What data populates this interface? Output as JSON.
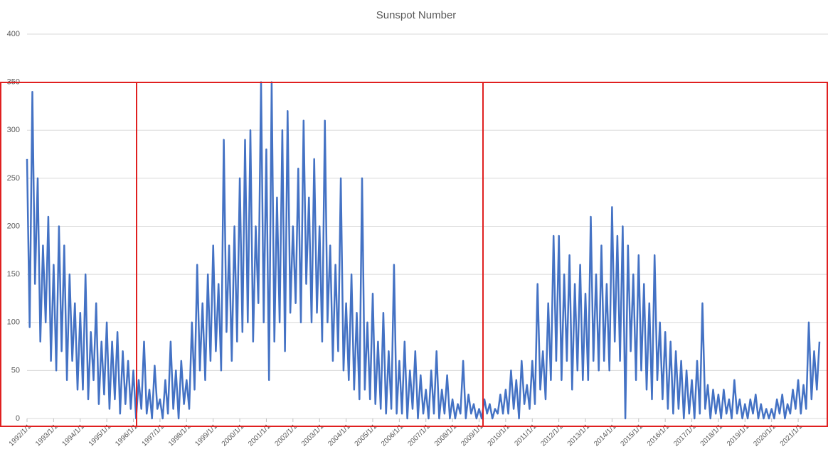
{
  "chart_data": {
    "type": "line",
    "title": "Sunspot Number",
    "color": "#4472c4",
    "grid": true,
    "xlim": [
      1992,
      2021.8
    ],
    "ylim": [
      0,
      400
    ],
    "yticks": [
      0,
      50,
      100,
      150,
      200,
      250,
      300,
      350,
      400
    ],
    "xticks": [
      {
        "value": 1992,
        "label": "1992/1/1"
      },
      {
        "value": 1993,
        "label": "1993/1/1"
      },
      {
        "value": 1994,
        "label": "1994/1/1"
      },
      {
        "value": 1995,
        "label": "1995/1/1"
      },
      {
        "value": 1996,
        "label": "1996/1/1"
      },
      {
        "value": 1997,
        "label": "1997/1/1"
      },
      {
        "value": 1998,
        "label": "1998/1/1"
      },
      {
        "value": 1999,
        "label": "1999/1/1"
      },
      {
        "value": 2000,
        "label": "2000/1/1"
      },
      {
        "value": 2001,
        "label": "2001/1/1"
      },
      {
        "value": 2002,
        "label": "2002/1/1"
      },
      {
        "value": 2003,
        "label": "2003/1/1"
      },
      {
        "value": 2004,
        "label": "2004/1/1"
      },
      {
        "value": 2005,
        "label": "2005/1/1"
      },
      {
        "value": 2006,
        "label": "2006/1/1"
      },
      {
        "value": 2007,
        "label": "2007/1/1"
      },
      {
        "value": 2008,
        "label": "2008/1/1"
      },
      {
        "value": 2009,
        "label": "2009/1/1"
      },
      {
        "value": 2010,
        "label": "2010/1/1"
      },
      {
        "value": 2011,
        "label": "2011/1/1"
      },
      {
        "value": 2012,
        "label": "2012/1/1"
      },
      {
        "value": 2013,
        "label": "2013/1/1"
      },
      {
        "value": 2014,
        "label": "2014/1/1"
      },
      {
        "value": 2015,
        "label": "2015/1/1"
      },
      {
        "value": 2016,
        "label": "2016/1/1"
      },
      {
        "value": 2017,
        "label": "2017/1/1"
      },
      {
        "value": 2018,
        "label": "2018/1/1"
      },
      {
        "value": 2019,
        "label": "2019/1/1"
      },
      {
        "value": 2020,
        "label": "2020/1/1"
      },
      {
        "value": 2021,
        "label": "2021/1/1"
      }
    ],
    "x": [
      1992,
      1992.1,
      1992.2,
      1992.3,
      1992.4,
      1992.5,
      1992.6,
      1992.7,
      1992.8,
      1992.9,
      1993,
      1993.1,
      1993.2,
      1993.3,
      1993.4,
      1993.5,
      1993.6,
      1993.7,
      1993.8,
      1993.9,
      1994,
      1994.1,
      1994.2,
      1994.3,
      1994.4,
      1994.5,
      1994.6,
      1994.7,
      1994.8,
      1994.9,
      1995,
      1995.1,
      1995.2,
      1995.3,
      1995.4,
      1995.5,
      1995.6,
      1995.7,
      1995.8,
      1995.9,
      1996,
      1996.1,
      1996.2,
      1996.3,
      1996.4,
      1996.5,
      1996.6,
      1996.7,
      1996.8,
      1996.9,
      1997,
      1997.1,
      1997.2,
      1997.3,
      1997.4,
      1997.5,
      1997.6,
      1997.7,
      1997.8,
      1997.9,
      1998,
      1998.1,
      1998.2,
      1998.3,
      1998.4,
      1998.5,
      1998.6,
      1998.7,
      1998.8,
      1998.9,
      1999,
      1999.1,
      1999.2,
      1999.3,
      1999.4,
      1999.5,
      1999.6,
      1999.7,
      1999.8,
      1999.9,
      2000,
      2000.1,
      2000.2,
      2000.3,
      2000.4,
      2000.5,
      2000.6,
      2000.7,
      2000.8,
      2000.9,
      2001,
      2001.1,
      2001.2,
      2001.3,
      2001.4,
      2001.5,
      2001.6,
      2001.7,
      2001.8,
      2001.9,
      2002,
      2002.1,
      2002.2,
      2002.3,
      2002.4,
      2002.5,
      2002.6,
      2002.7,
      2002.8,
      2002.9,
      2003,
      2003.1,
      2003.2,
      2003.3,
      2003.4,
      2003.5,
      2003.6,
      2003.7,
      2003.8,
      2003.9,
      2004,
      2004.1,
      2004.2,
      2004.3,
      2004.4,
      2004.5,
      2004.6,
      2004.7,
      2004.8,
      2004.9,
      2005,
      2005.1,
      2005.2,
      2005.3,
      2005.4,
      2005.5,
      2005.6,
      2005.7,
      2005.8,
      2005.9,
      2006,
      2006.1,
      2006.2,
      2006.3,
      2006.4,
      2006.5,
      2006.6,
      2006.7,
      2006.8,
      2006.9,
      2007,
      2007.1,
      2007.2,
      2007.3,
      2007.4,
      2007.5,
      2007.6,
      2007.7,
      2007.8,
      2007.9,
      2008,
      2008.1,
      2008.2,
      2008.3,
      2008.4,
      2008.5,
      2008.6,
      2008.7,
      2008.8,
      2008.9,
      2009,
      2009.1,
      2009.2,
      2009.3,
      2009.4,
      2009.5,
      2009.6,
      2009.7,
      2009.8,
      2009.9,
      2010,
      2010.1,
      2010.2,
      2010.3,
      2010.4,
      2010.5,
      2010.6,
      2010.7,
      2010.8,
      2010.9,
      2011,
      2011.1,
      2011.2,
      2011.3,
      2011.4,
      2011.5,
      2011.6,
      2011.7,
      2011.8,
      2011.9,
      2012,
      2012.1,
      2012.2,
      2012.3,
      2012.4,
      2012.5,
      2012.6,
      2012.7,
      2012.8,
      2012.9,
      2013,
      2013.1,
      2013.2,
      2013.3,
      2013.4,
      2013.5,
      2013.6,
      2013.7,
      2013.8,
      2013.9,
      2014,
      2014.1,
      2014.2,
      2014.3,
      2014.4,
      2014.5,
      2014.6,
      2014.7,
      2014.8,
      2014.9,
      2015,
      2015.1,
      2015.2,
      2015.3,
      2015.4,
      2015.5,
      2015.6,
      2015.7,
      2015.8,
      2015.9,
      2016,
      2016.1,
      2016.2,
      2016.3,
      2016.4,
      2016.5,
      2016.6,
      2016.7,
      2016.8,
      2016.9,
      2017,
      2017.1,
      2017.2,
      2017.3,
      2017.4,
      2017.5,
      2017.6,
      2017.7,
      2017.8,
      2017.9,
      2018,
      2018.1,
      2018.2,
      2018.3,
      2018.4,
      2018.5,
      2018.6,
      2018.7,
      2018.8,
      2018.9,
      2019,
      2019.1,
      2019.2,
      2019.3,
      2019.4,
      2019.5,
      2019.6,
      2019.7,
      2019.8,
      2019.9,
      2020,
      2020.1,
      2020.2,
      2020.3,
      2020.4,
      2020.5,
      2020.6,
      2020.7,
      2020.8,
      2020.9,
      2021,
      2021.1,
      2021.2,
      2021.3,
      2021.4,
      2021.5,
      2021.6,
      2021.7,
      2021.8
    ],
    "values": [
      270,
      95,
      340,
      140,
      250,
      80,
      180,
      100,
      210,
      60,
      160,
      50,
      200,
      70,
      180,
      40,
      150,
      60,
      120,
      30,
      110,
      30,
      150,
      20,
      90,
      40,
      120,
      15,
      80,
      25,
      100,
      10,
      80,
      20,
      90,
      5,
      70,
      15,
      60,
      10,
      50,
      0,
      40,
      10,
      80,
      5,
      30,
      0,
      55,
      10,
      20,
      0,
      40,
      5,
      80,
      10,
      50,
      0,
      60,
      15,
      40,
      10,
      100,
      30,
      160,
      50,
      120,
      40,
      150,
      60,
      180,
      70,
      140,
      50,
      290,
      90,
      180,
      60,
      200,
      80,
      250,
      90,
      290,
      100,
      300,
      80,
      200,
      120,
      350,
      100,
      280,
      40,
      350,
      80,
      230,
      100,
      300,
      70,
      320,
      110,
      200,
      120,
      260,
      100,
      310,
      140,
      230,
      100,
      270,
      110,
      200,
      80,
      310,
      100,
      180,
      60,
      160,
      70,
      250,
      50,
      120,
      40,
      150,
      30,
      110,
      20,
      250,
      30,
      100,
      20,
      130,
      15,
      80,
      10,
      110,
      5,
      70,
      10,
      160,
      5,
      60,
      5,
      80,
      0,
      50,
      10,
      70,
      0,
      45,
      5,
      30,
      0,
      50,
      5,
      70,
      0,
      30,
      5,
      45,
      0,
      20,
      0,
      15,
      5,
      60,
      0,
      25,
      5,
      15,
      0,
      10,
      0,
      20,
      5,
      15,
      0,
      10,
      5,
      25,
      5,
      30,
      5,
      50,
      10,
      40,
      0,
      60,
      15,
      35,
      10,
      60,
      15,
      140,
      30,
      70,
      20,
      120,
      40,
      190,
      60,
      190,
      40,
      150,
      60,
      170,
      30,
      140,
      50,
      160,
      40,
      130,
      40,
      210,
      60,
      150,
      50,
      180,
      60,
      140,
      50,
      220,
      80,
      190,
      60,
      200,
      0,
      180,
      70,
      150,
      40,
      170,
      50,
      140,
      30,
      120,
      20,
      170,
      40,
      100,
      20,
      90,
      10,
      80,
      5,
      70,
      10,
      60,
      0,
      50,
      5,
      40,
      0,
      60,
      5,
      120,
      10,
      35,
      0,
      30,
      5,
      25,
      0,
      30,
      5,
      20,
      0,
      40,
      5,
      20,
      0,
      15,
      0,
      20,
      5,
      25,
      0,
      15,
      0,
      10,
      0,
      10,
      0,
      20,
      5,
      25,
      0,
      15,
      5,
      30,
      10,
      40,
      5,
      35,
      10,
      100,
      20,
      70,
      30,
      80
    ]
  }
}
